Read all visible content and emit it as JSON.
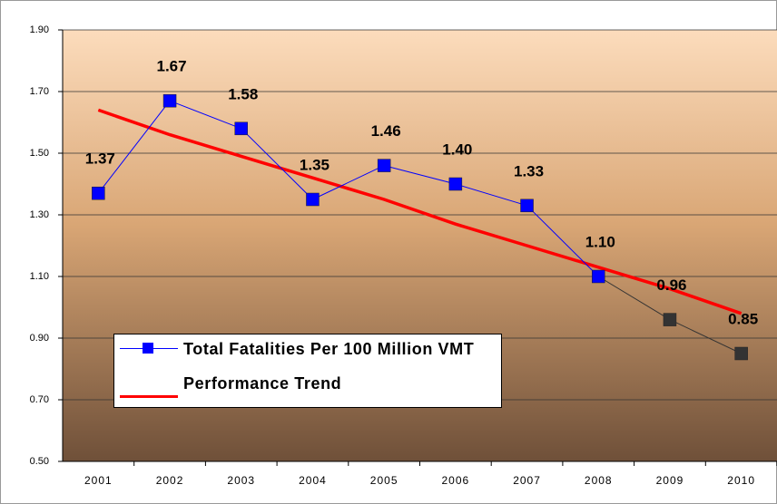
{
  "chart_data": {
    "type": "line",
    "categories": [
      "2001",
      "2002",
      "2003",
      "2004",
      "2005",
      "2006",
      "2007",
      "2008",
      "2009",
      "2010"
    ],
    "series": [
      {
        "name": "Total Fatalities Per 100 Million VMT",
        "color": "#0000ff",
        "values": [
          1.37,
          1.67,
          1.58,
          1.35,
          1.46,
          1.4,
          1.33,
          1.1,
          0.96,
          0.85
        ],
        "value_labels": [
          "1.37",
          "1.67",
          "1.58",
          "1.35",
          "1.46",
          "1.40",
          "1.33",
          "1.10",
          "0.96",
          "0.85"
        ],
        "point_colors": [
          "#0000ff",
          "#0000ff",
          "#0000ff",
          "#0000ff",
          "#0000ff",
          "#0000ff",
          "#0000ff",
          "#0000ff",
          "#333333",
          "#333333"
        ]
      },
      {
        "name": "Performance Trend",
        "color": "#ff0000",
        "values": [
          1.64,
          1.56,
          1.49,
          1.42,
          1.35,
          1.27,
          1.2,
          1.13,
          1.06,
          0.98
        ]
      }
    ],
    "ylim": [
      0.5,
      1.9
    ],
    "yticks": [
      {
        "value": 0.5,
        "label": "0.50"
      },
      {
        "value": 0.7,
        "label": "0.70"
      },
      {
        "value": 0.9,
        "label": "0.90"
      },
      {
        "value": 1.1,
        "label": "1.10"
      },
      {
        "value": 1.3,
        "label": "1.30"
      },
      {
        "value": 1.5,
        "label": "1.50"
      },
      {
        "value": 1.7,
        "label": "1.70"
      },
      {
        "value": 1.9,
        "label": "1.90"
      }
    ],
    "grid": true
  }
}
